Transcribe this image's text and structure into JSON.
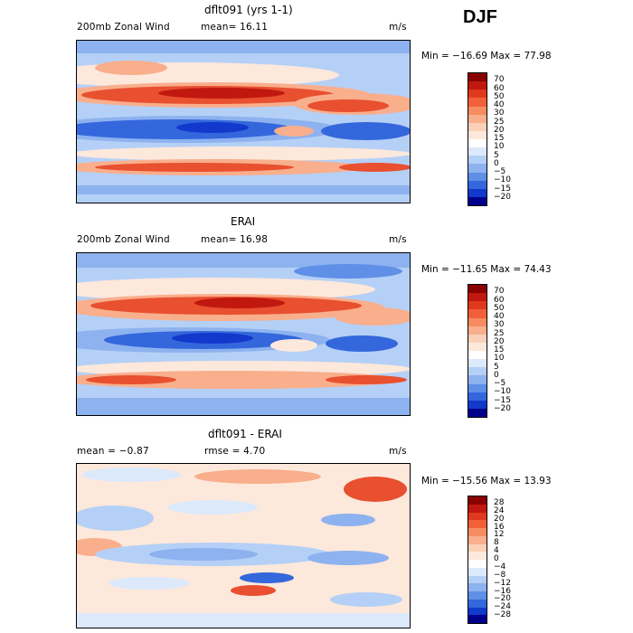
{
  "season": "DJF",
  "panels": [
    {
      "title": "dflt091 (yrs 1-1)",
      "left_label": "200mb Zonal Wind",
      "stat_label": "mean=  16.11",
      "units": "m/s",
      "minmax": "Min = −16.69 Max =  77.98",
      "colorbar_labels": [
        "70",
        "60",
        "50",
        "40",
        "30",
        "25",
        "20",
        "15",
        "10",
        "5",
        "0",
        "−5",
        "−10",
        "−15",
        "−20"
      ]
    },
    {
      "title": "ERAI",
      "left_label": "200mb Zonal Wind",
      "stat_label": "mean=  16.98",
      "units": "m/s",
      "minmax": "Min = −11.65 Max =  74.43",
      "colorbar_labels": [
        "70",
        "60",
        "50",
        "40",
        "30",
        "25",
        "20",
        "15",
        "10",
        "5",
        "0",
        "−5",
        "−10",
        "−15",
        "−20"
      ]
    },
    {
      "title": "dflt091 - ERAI",
      "left_label": "mean =  −0.87",
      "stat_label": "rmse =   4.70",
      "units": "m/s",
      "minmax": "Min = −15.56 Max =  13.93",
      "colorbar_labels": [
        "28",
        "24",
        "20",
        "16",
        "12",
        "8",
        "4",
        "0",
        "−4",
        "−8",
        "−12",
        "−16",
        "−20",
        "−24",
        "−28"
      ]
    }
  ],
  "colorbar_colors": [
    "#8b0000",
    "#c0180f",
    "#e03a1e",
    "#f2603a",
    "#f78c62",
    "#f9ae8c",
    "#fbd0b8",
    "#fde8dc",
    "#ffffff",
    "#dbe9fb",
    "#b5d0f6",
    "#8db2ef",
    "#5f8fe6",
    "#3467dc",
    "#1238cc",
    "#00008b"
  ],
  "map_colors": {
    "strong_pos": "#c0180f",
    "pos": "#e8502f",
    "weak_pos": "#f9ae8c",
    "faint_pos": "#fde8dc",
    "faint_neg": "#dbe9fb",
    "weak_neg": "#8db2ef",
    "neg": "#3467dc",
    "strong_neg": "#1238cc"
  }
}
